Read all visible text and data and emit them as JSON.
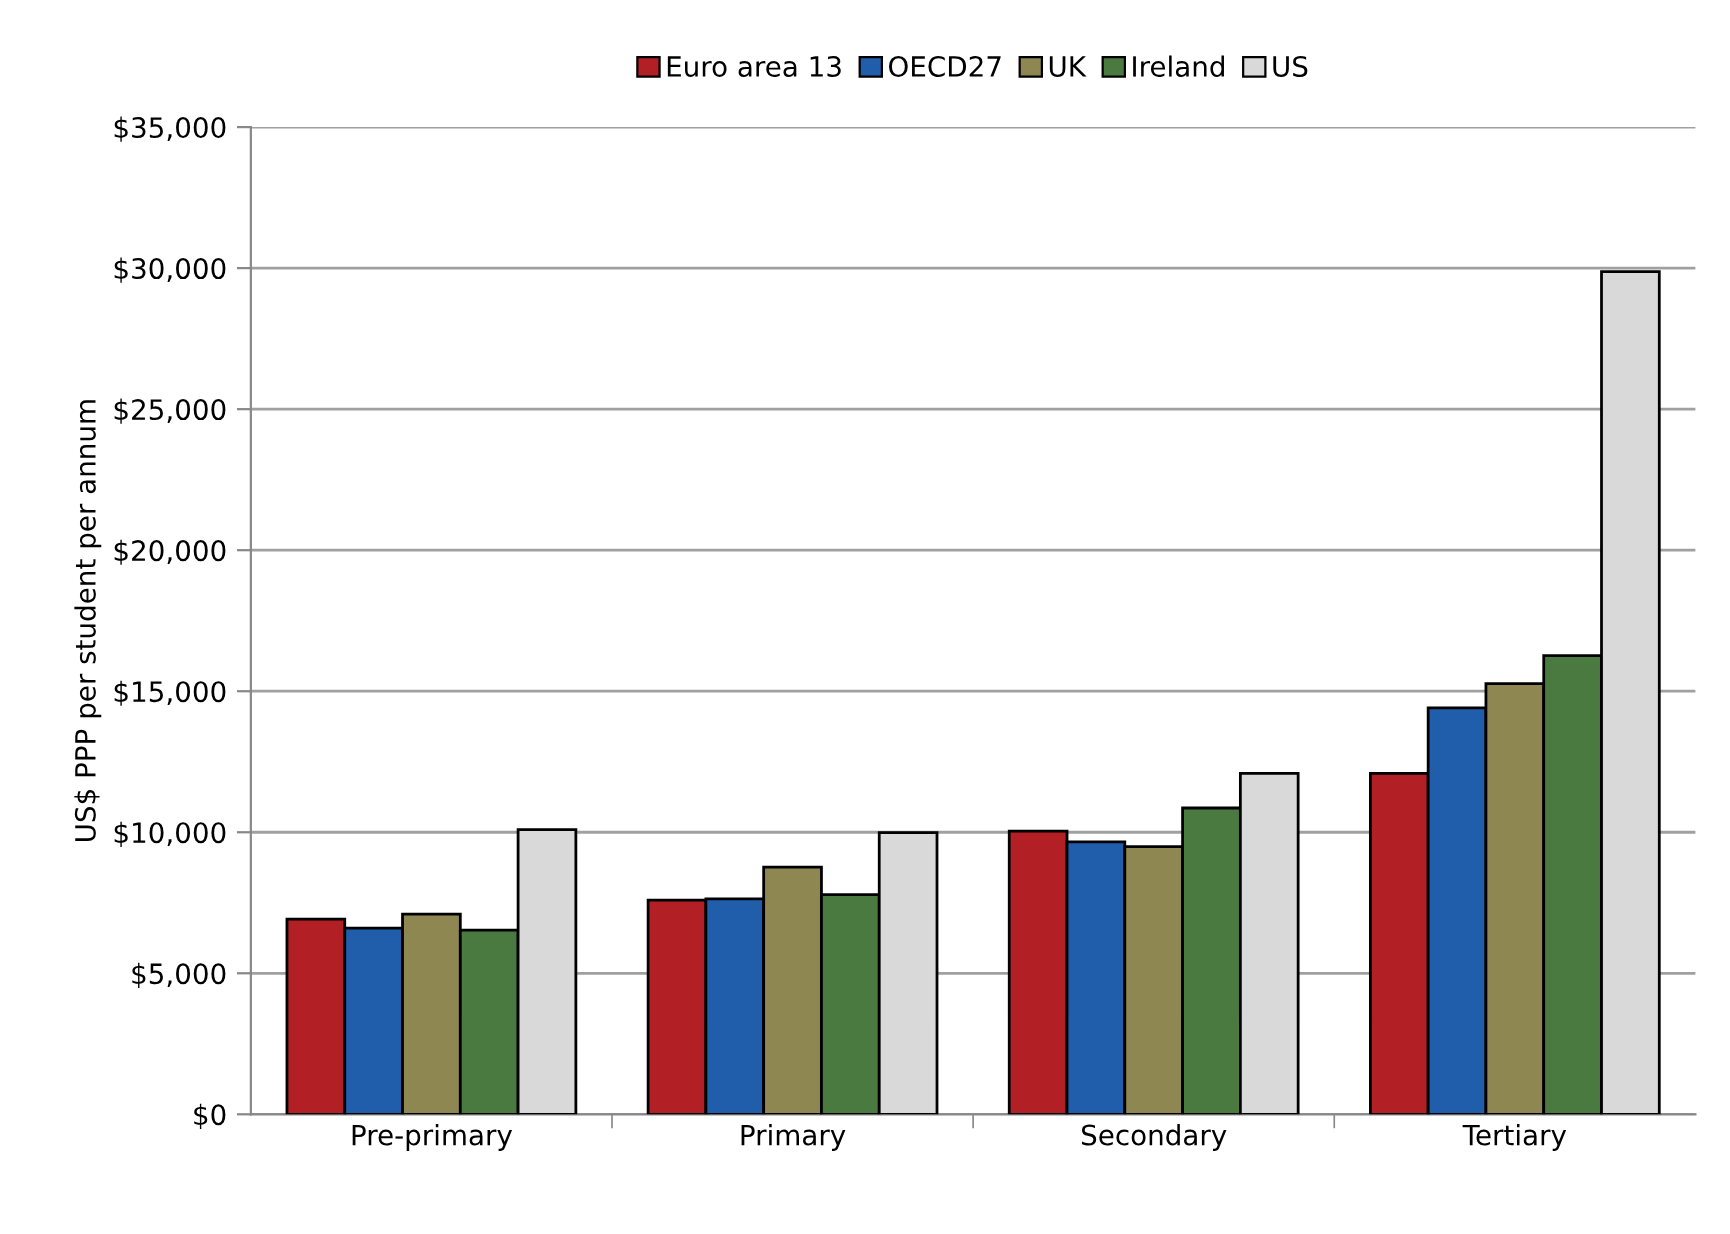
{
  "chart_data": {
    "type": "bar",
    "ylabel": "US$ PPP per student per annum",
    "categories": [
      "Pre-primary",
      "Primary",
      "Secondary",
      "Tertiary"
    ],
    "series": [
      {
        "name": "Euro area 13",
        "color": "#b21f25",
        "values": [
          6920,
          7590,
          10040,
          12090
        ]
      },
      {
        "name": "OECD27",
        "color": "#205eab",
        "values": [
          6600,
          7640,
          9660,
          14410
        ]
      },
      {
        "name": "UK",
        "color": "#8f8752",
        "values": [
          7100,
          8760,
          9490,
          15270
        ]
      },
      {
        "name": "Ireland",
        "color": "#4a7a40",
        "values": [
          6530,
          7790,
          10860,
          16260
        ]
      },
      {
        "name": "US",
        "color": "#d9d9d9",
        "values": [
          10090,
          9990,
          12090,
          29880
        ]
      }
    ],
    "ylim": [
      0,
      35000
    ],
    "yticks": [
      {
        "value": 0,
        "label": "$0"
      },
      {
        "value": 5000,
        "label": "$5,000"
      },
      {
        "value": 10000,
        "label": "$10,000"
      },
      {
        "value": 15000,
        "label": "$15,000"
      },
      {
        "value": 20000,
        "label": "$20,000"
      },
      {
        "value": 25000,
        "label": "$25,000"
      },
      {
        "value": 30000,
        "label": "$30,000"
      },
      {
        "value": 35000,
        "label": "$35,000"
      }
    ],
    "grid": "y",
    "legend": "top"
  }
}
